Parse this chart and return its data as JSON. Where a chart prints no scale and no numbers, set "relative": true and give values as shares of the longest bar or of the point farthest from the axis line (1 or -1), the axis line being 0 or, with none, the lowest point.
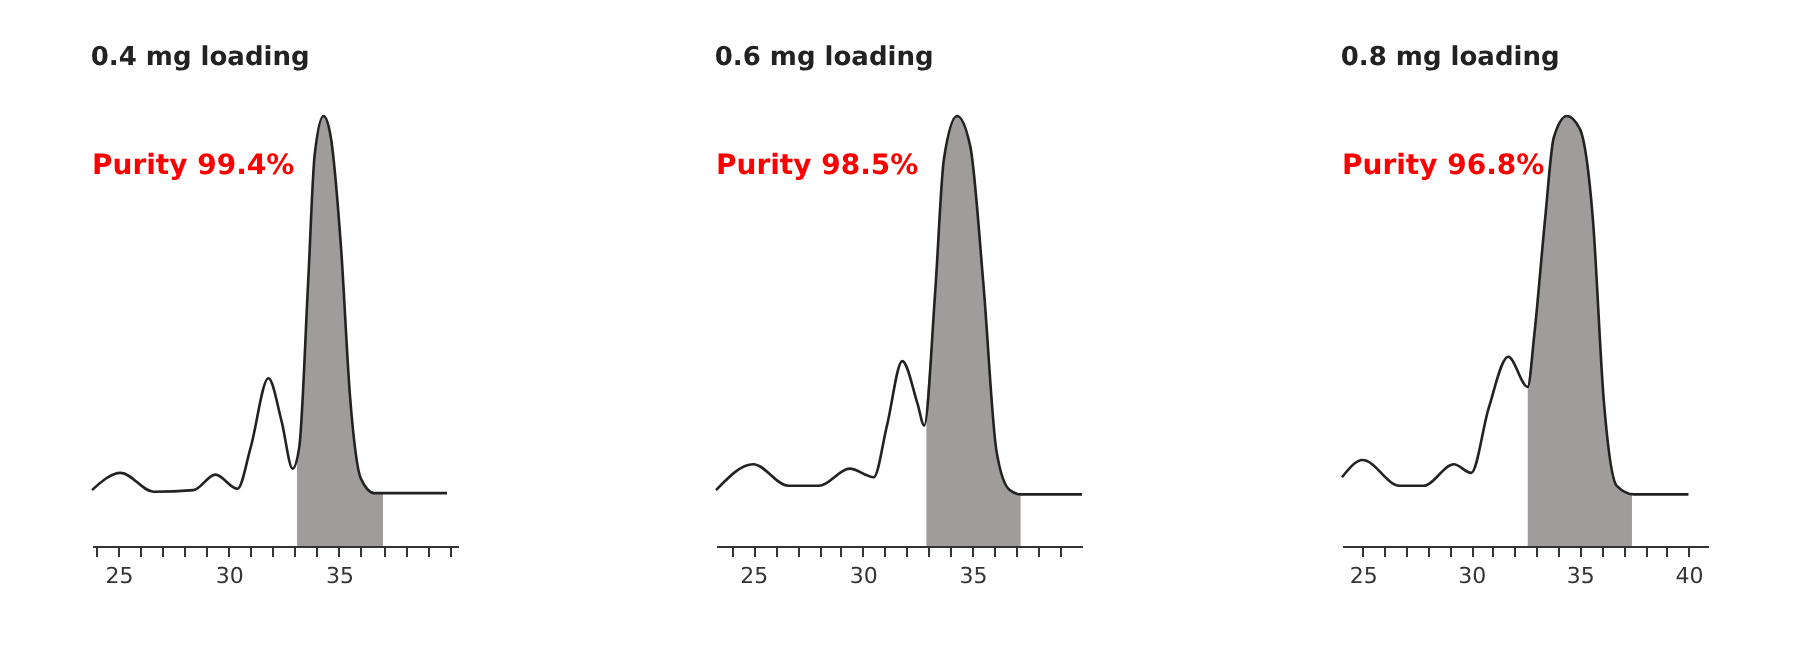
{
  "chart_data": [
    {
      "type": "line",
      "title": "0.4 mg loading",
      "annotations": [
        "Purity 99.4%"
      ],
      "relative": true,
      "xlim": [
        23.8,
        40.4
      ],
      "xticks": [
        {
          "value": 24,
          "label": null
        },
        25,
        {
          "value": 26,
          "label": null
        },
        {
          "value": 27,
          "label": null
        },
        {
          "value": 28,
          "label": null
        },
        {
          "value": 29,
          "label": null
        },
        30,
        {
          "value": 31,
          "label": null
        },
        {
          "value": 32,
          "label": null
        },
        {
          "value": 33,
          "label": null
        },
        {
          "value": 34,
          "label": null
        },
        35,
        {
          "value": 36,
          "label": null
        },
        {
          "value": 37,
          "label": null
        },
        {
          "value": 38,
          "label": null
        },
        {
          "value": 39,
          "label": null
        },
        {
          "value": 40,
          "label": null
        }
      ],
      "series": [
        {
          "type": "line",
          "color": "#222222",
          "x": [
            23.8,
            25.1,
            26.6,
            28.4,
            29.4,
            30.4,
            31.0,
            31.8,
            32.4,
            32.9,
            33.2,
            33.6,
            33.9,
            34.3,
            34.6,
            35.1,
            35.5,
            36.0,
            36.6,
            37.8,
            39.9
          ],
          "values": [
            0.13,
            0.17,
            0.126,
            0.13,
            0.166,
            0.133,
            0.23,
            0.39,
            0.29,
            0.18,
            0.23,
            0.61,
            0.91,
            1.0,
            0.96,
            0.69,
            0.35,
            0.156,
            0.123,
            0.123,
            0.123
          ]
        },
        {
          "type": "area",
          "color": "#a09c9c",
          "x": [
            33.1,
            33.2,
            33.6,
            33.9,
            34.3,
            34.6,
            35.1,
            35.5,
            36.0,
            36.6,
            37.0
          ],
          "values": [
            0.21,
            0.23,
            0.61,
            0.91,
            1.0,
            0.96,
            0.69,
            0.35,
            0.156,
            0.123,
            0.123
          ]
        }
      ]
    },
    {
      "type": "line",
      "title": "0.6 mg loading",
      "annotations": [
        "Purity 98.5%"
      ],
      "relative": true,
      "xlim": [
        23.3,
        40.0
      ],
      "xticks": [
        {
          "value": 24,
          "label": null
        },
        25,
        {
          "value": 26,
          "label": null
        },
        {
          "value": 27,
          "label": null
        },
        {
          "value": 28,
          "label": null
        },
        {
          "value": 29,
          "label": null
        },
        30,
        {
          "value": 31,
          "label": null
        },
        {
          "value": 32,
          "label": null
        },
        {
          "value": 33,
          "label": null
        },
        {
          "value": 34,
          "label": null
        },
        35,
        {
          "value": 36,
          "label": null
        },
        {
          "value": 37,
          "label": null
        },
        {
          "value": 38,
          "label": null
        },
        {
          "value": 39,
          "label": null
        }
      ],
      "series": [
        {
          "type": "line",
          "color": "#222222",
          "x": [
            23.3,
            25.0,
            26.6,
            28.0,
            29.4,
            30.5,
            31.1,
            31.8,
            32.5,
            32.8,
            33.3,
            33.7,
            34.3,
            34.9,
            35.5,
            36.1,
            36.7,
            37.2,
            40.0
          ],
          "values": [
            0.13,
            0.19,
            0.14,
            0.14,
            0.18,
            0.16,
            0.28,
            0.43,
            0.33,
            0.28,
            0.59,
            0.9,
            1.0,
            0.93,
            0.61,
            0.22,
            0.13,
            0.12,
            0.12
          ]
        },
        {
          "type": "area",
          "color": "#a09c9c",
          "x": [
            32.9,
            33.3,
            33.7,
            34.3,
            34.9,
            35.5,
            36.1,
            36.7,
            37.2
          ],
          "values": [
            0.33,
            0.59,
            0.9,
            1.0,
            0.93,
            0.61,
            0.22,
            0.13,
            0.12
          ]
        }
      ]
    },
    {
      "type": "line",
      "title": "0.8 mg loading",
      "annotations": [
        "Purity 96.8%"
      ],
      "relative": true,
      "xlim": [
        24.05,
        40.9
      ],
      "xticks": [
        25,
        {
          "value": 26,
          "label": null
        },
        {
          "value": 27,
          "label": null
        },
        {
          "value": 28,
          "label": null
        },
        {
          "value": 29,
          "label": null
        },
        30,
        {
          "value": 31,
          "label": null
        },
        {
          "value": 32,
          "label": null
        },
        {
          "value": 33,
          "label": null
        },
        {
          "value": 34,
          "label": null
        },
        35,
        {
          "value": 36,
          "label": null
        },
        {
          "value": 37,
          "label": null
        },
        {
          "value": 38,
          "label": null
        },
        {
          "value": 39,
          "label": null
        },
        40
      ],
      "series": [
        {
          "type": "line",
          "color": "#222222",
          "x": [
            24.05,
            25.0,
            26.7,
            27.8,
            29.2,
            30.0,
            30.8,
            31.7,
            32.6,
            32.9,
            33.4,
            33.8,
            34.4,
            35.0,
            35.6,
            36.1,
            36.7,
            37.5,
            39.5,
            40.0
          ],
          "values": [
            0.16,
            0.2,
            0.14,
            0.14,
            0.19,
            0.17,
            0.32,
            0.44,
            0.37,
            0.49,
            0.76,
            0.95,
            1.0,
            0.97,
            0.76,
            0.34,
            0.14,
            0.12,
            0.12,
            0.12
          ]
        },
        {
          "type": "area",
          "color": "#a09c9c",
          "x": [
            32.6,
            32.9,
            33.4,
            33.8,
            34.4,
            35.0,
            35.6,
            36.1,
            36.7,
            37.4
          ],
          "values": [
            0.37,
            0.49,
            0.76,
            0.95,
            1.0,
            0.97,
            0.76,
            0.34,
            0.14,
            0.12
          ]
        }
      ]
    }
  ]
}
